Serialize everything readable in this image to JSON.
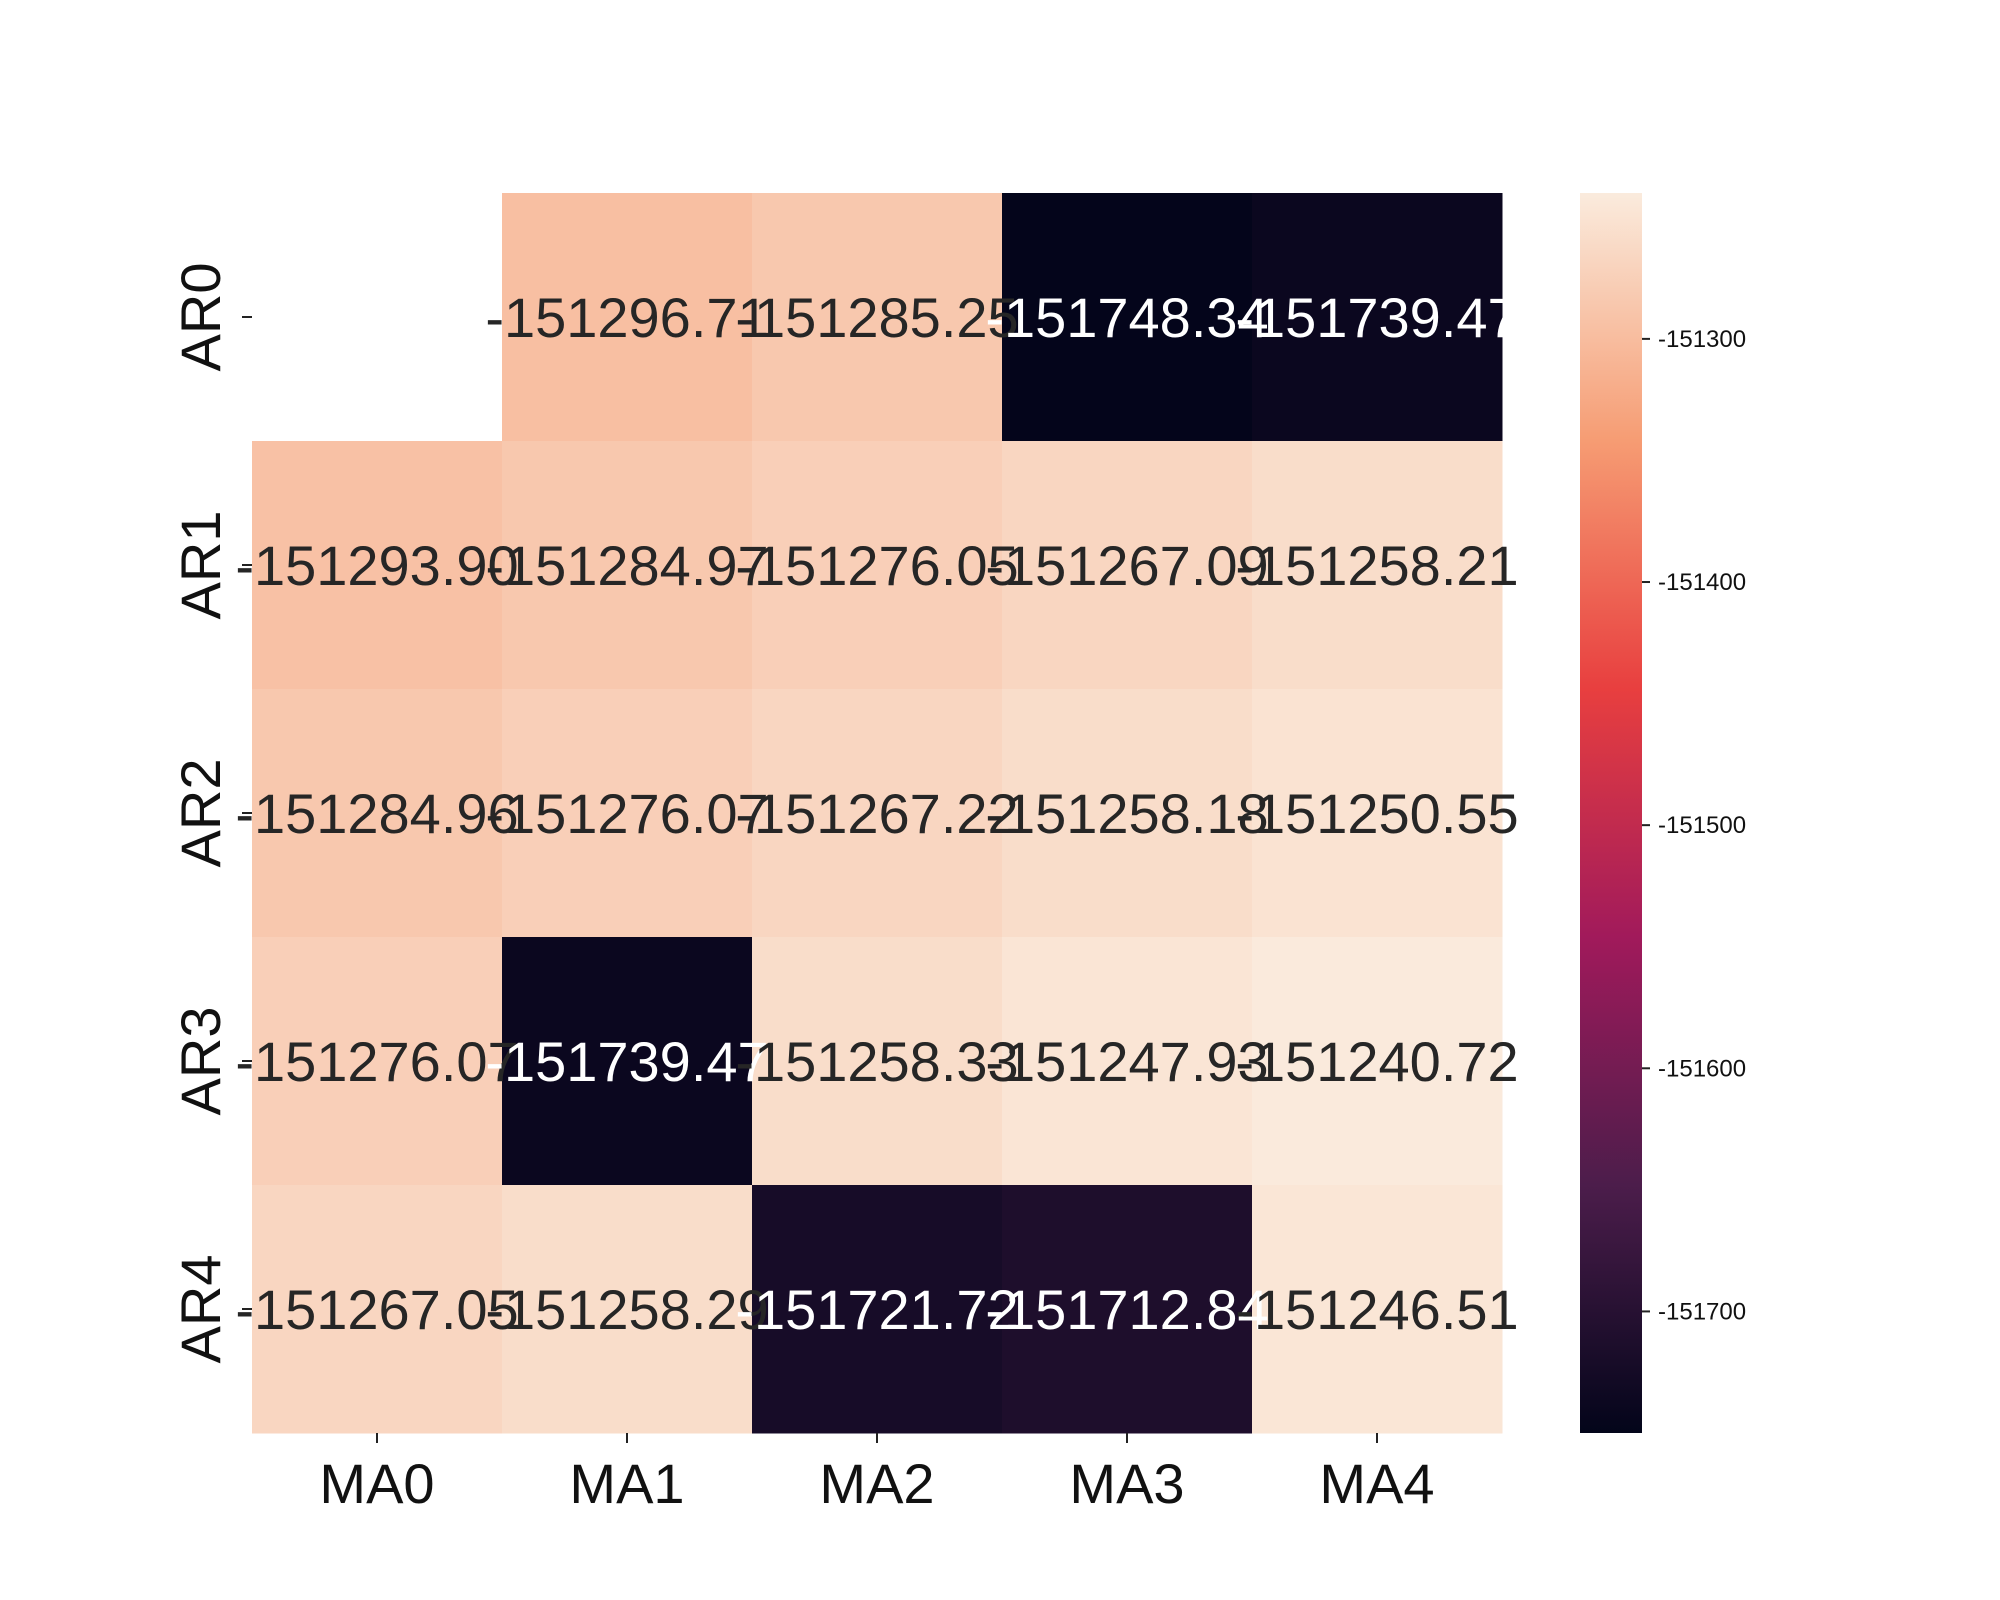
{
  "chart_data": {
    "type": "heatmap",
    "title": "",
    "xlabel": "",
    "ylabel": "",
    "x_categories": [
      "MA0",
      "MA1",
      "MA2",
      "MA3",
      "MA4"
    ],
    "y_categories": [
      "AR0",
      "AR1",
      "AR2",
      "AR3",
      "AR4"
    ],
    "values": [
      [
        null,
        -151296.71,
        -151285.25,
        -151748.34,
        -151739.47
      ],
      [
        -151293.9,
        -151284.97,
        -151276.05,
        -151267.09,
        -151258.21
      ],
      [
        -151284.96,
        -151276.07,
        -151267.22,
        -151258.18,
        -151250.55
      ],
      [
        -151276.07,
        -151739.47,
        -151258.33,
        -151247.93,
        -151240.72
      ],
      [
        -151267.05,
        -151258.29,
        -151721.72,
        -151712.84,
        -151246.51
      ]
    ],
    "cell_labels": [
      [
        "",
        "-151296.71",
        "-151285.25",
        "-151748.34",
        "-151739.47"
      ],
      [
        "-151293.90",
        "-151284.97",
        "-151276.05",
        "-151267.09",
        "-151258.21"
      ],
      [
        "-151284.96",
        "-151276.07",
        "-151267.22",
        "-151258.18",
        "-151250.55"
      ],
      [
        "-151276.07",
        "-151739.47",
        "-151258.33",
        "-151247.93",
        "-151240.72"
      ],
      [
        "-151267.05",
        "-151258.29",
        "-151721.72",
        "-151712.84",
        "-151246.51"
      ]
    ],
    "colorbar": {
      "vmin": -151750,
      "vmax": -151240,
      "ticks": [
        -151300,
        -151400,
        -151500,
        -151600,
        -151700
      ],
      "tick_labels": [
        "-151300",
        "-151400",
        "-151500",
        "-151600",
        "-151700"
      ]
    },
    "colormap": "rocket",
    "colormap_stops": [
      "#03051a",
      "#4c1d4b",
      "#a11a5b",
      "#e83f3f",
      "#f69c73",
      "#faebdd"
    ],
    "grid": false,
    "legend": "colorbar-right"
  }
}
